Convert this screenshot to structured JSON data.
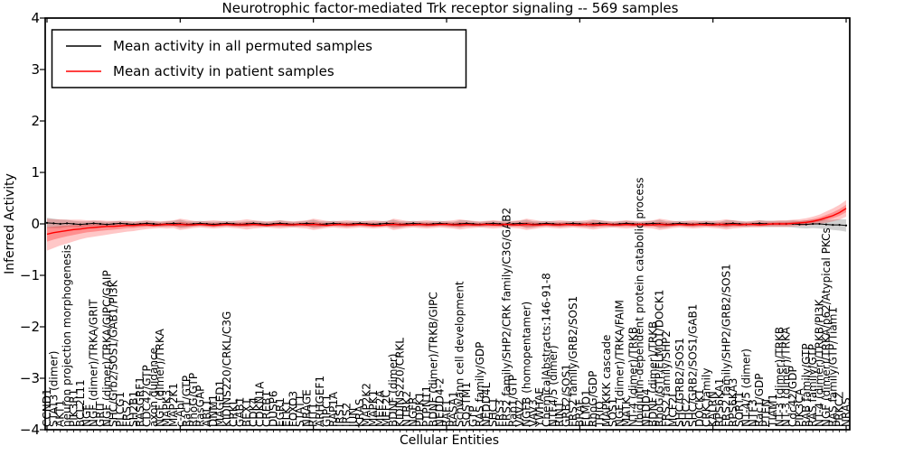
{
  "figure": {
    "kind": "matplotlib-line-figure"
  },
  "chart_data": {
    "type": "line",
    "title": "Neurotrophic factor-mediated Trk receptor signaling -- 569 samples",
    "xlabel": "Cellular Entities",
    "ylabel": "Inferred Activity",
    "ylim": [
      -4,
      4
    ],
    "ytick_labels": [
      "4",
      "3",
      "2",
      "1",
      "0",
      "−1",
      "−2",
      "−3",
      "−4"
    ],
    "ytick_values": [
      4,
      3,
      2,
      1,
      0,
      -1,
      -2,
      -3,
      -4
    ],
    "xtick_major_every": 20,
    "grid": false,
    "legend_position": "upper left",
    "colors": {
      "permuted": "#000000",
      "patient": "#ff0000",
      "patient_band": "#ff0000",
      "permuted_band": "#000000"
    },
    "categories": [
      "CCND1",
      "STAT3 (dimer)",
      "AKT1",
      "neuron projection morphogenesis",
      "PIK3R1",
      "BCL2L11",
      "NGF",
      "NGF (dimer)/TRKA/GRIT",
      "GRIT",
      "NGF (dimer)/TRKA/GIPC/GAIP",
      "SHC/Grb2/SOS1/GAB1/PI3K",
      "PLCG1",
      "FRS2",
      "SH2B1",
      "RASGRF1",
      "CDC42/GTP",
      "axon guidance",
      "NGF (dimer)/TRKA",
      "MAPK3",
      "MAP2K1",
      "c-Abl",
      "Rac1/GTP",
      "RhoG/GTP",
      "RasGAP",
      "ABL1",
      "DNM1",
      "MAGED1",
      "KIDINS220/CRKL/C3G",
      "CRKL",
      "GAB1",
      "BEX1",
      "CDK4",
      "CDKN1A",
      "CREB1",
      "DUSP6",
      "EGR1",
      "ELK1",
      "FOXO3",
      "STAT1",
      "NRAGE",
      "RIT1",
      "ARHGEF1",
      "GIPC1",
      "RAP1A",
      "IRS1",
      "IRS2",
      "JUN",
      "KRAS",
      "MAP2K2",
      "MAPK1",
      "MEF2A",
      "MEF2C",
      "BDNF (dimer)",
      "KIDINS220/CRKL",
      "NTRK2",
      "NGFR",
      "PDPK1",
      "PTPN11",
      "BDNF (dimer)/TRKB/GIPC",
      "NEDD4-2",
      "RAF1",
      "RASA1",
      "Schwann cell development",
      "SQSTM1",
      "GTP",
      "RAS family/GDP",
      "NEDD4L",
      "SHC1",
      "FRS3",
      "FRS2 family/SHP2/CRK family/C3G/GAB2",
      "Rap1/GTP",
      "VAV2",
      "NGFB (homopentamer)",
      "VAV3",
      "YWHAE",
      "ChemicalAbstracts:146-91-8",
      "NTF4/5 (dimer)",
      "RIN1",
      "GRB2/SOS1",
      "FRS2 family/GRB2/SOS1",
      "BRAF",
      "ELMO1",
      "RhoG/GDP",
      "TRIO",
      "MAPKKK cascade",
      "SOS1",
      "NGF (dimer)/TRKA/FAIM",
      "MATK",
      "NT-4 (dimer)/TRKB",
      "ubiquitin-dependent protein catabolic process",
      "NEDD4",
      "BDNF (dimer)/TRKB",
      "RhoG/GTP/ELMO1/DOCK1",
      "FRS2 family/SHP2",
      "MCF2L",
      "SHC/GRB2/SOS1",
      "SHC2",
      "SHC/GRB2/SOS1/GAB1",
      "DOCK1",
      "CRK family",
      "KALRN",
      "RPS6KA1",
      "FRS2 family/SHP2/GRB2/SOS1",
      "RPS6KA3",
      "SORT1",
      "NT-4/5 (dimer)",
      "NTF3",
      "Rac1/GDP",
      "PTEN",
      "TIAM1",
      "NT-3 (dimer)/TRKB",
      "NT-3 (dimer)/TRKA",
      "Cdc42/GDP",
      "PIK3CA",
      "RAB family/GTP",
      "RAS family/GTP",
      "NT-4 (dimer)/TRKB/PI3K",
      "NGF (dimer)/TRKA/p62/Atypical PKCs",
      "RAS family/GTP/Tiam1",
      "PRKCZ",
      "NRAS"
    ],
    "series": [
      {
        "name": "Mean activity in all permuted samples",
        "color": "#000000",
        "values": [
          0.02,
          0.01,
          0.0,
          0.01,
          0.0,
          -0.01,
          0.0,
          0.01,
          0.0,
          -0.01,
          0.0,
          0.01,
          0.0,
          -0.01,
          0.0,
          0.01,
          0.0,
          -0.01,
          0.0,
          0.01,
          0.0,
          -0.01,
          0.0,
          0.01,
          0.0,
          -0.01,
          0.0,
          0.01,
          0.0,
          -0.01,
          0.0,
          0.01,
          0.0,
          -0.01,
          0.0,
          0.01,
          0.0,
          -0.01,
          0.0,
          0.01,
          0.0,
          -0.01,
          0.0,
          0.01,
          0.0,
          -0.01,
          0.0,
          0.01,
          0.0,
          -0.01,
          0.0,
          0.01,
          0.0,
          -0.01,
          0.0,
          0.01,
          0.0,
          -0.01,
          0.0,
          0.01,
          0.0,
          -0.01,
          0.0,
          0.01,
          0.0,
          -0.01,
          0.0,
          0.01,
          0.0,
          -0.01,
          0.0,
          0.01,
          0.0,
          -0.01,
          0.0,
          0.01,
          0.0,
          -0.01,
          0.0,
          0.01,
          0.0,
          -0.01,
          0.0,
          0.01,
          0.0,
          -0.01,
          0.0,
          0.01,
          0.0,
          -0.01,
          0.0,
          0.01,
          0.0,
          -0.01,
          0.0,
          0.01,
          0.0,
          -0.01,
          0.0,
          0.01,
          0.0,
          -0.01,
          0.0,
          0.01,
          0.0,
          -0.01,
          0.0,
          0.01,
          0.0,
          0.0,
          0.0,
          0.0,
          0.0,
          -0.01,
          -0.01,
          0.0,
          0.0,
          -0.01,
          -0.02,
          -0.02,
          -0.03
        ],
        "band_halfwidth": [
          0.1,
          0.09,
          0.08,
          0.07,
          0.06,
          0.06,
          0.05,
          0.05,
          0.05,
          0.05,
          0.05,
          0.05,
          0.05,
          0.05,
          0.05,
          0.05,
          0.05,
          0.05,
          0.05,
          0.05,
          0.08,
          0.06,
          0.05,
          0.05,
          0.05,
          0.05,
          0.05,
          0.05,
          0.05,
          0.05,
          0.05,
          0.05,
          0.05,
          0.05,
          0.05,
          0.06,
          0.05,
          0.05,
          0.05,
          0.05,
          0.08,
          0.06,
          0.05,
          0.05,
          0.05,
          0.05,
          0.05,
          0.05,
          0.05,
          0.05,
          0.05,
          0.05,
          0.08,
          0.06,
          0.05,
          0.05,
          0.05,
          0.05,
          0.05,
          0.05,
          0.05,
          0.05,
          0.07,
          0.06,
          0.05,
          0.05,
          0.05,
          0.05,
          0.05,
          0.05,
          0.05,
          0.05,
          0.08,
          0.06,
          0.05,
          0.05,
          0.05,
          0.05,
          0.05,
          0.05,
          0.05,
          0.05,
          0.07,
          0.06,
          0.05,
          0.05,
          0.05,
          0.05,
          0.05,
          0.05,
          0.05,
          0.05,
          0.08,
          0.06,
          0.05,
          0.05,
          0.05,
          0.05,
          0.05,
          0.05,
          0.05,
          0.05,
          0.07,
          0.06,
          0.05,
          0.05,
          0.05,
          0.06,
          0.06,
          0.06,
          0.06,
          0.06,
          0.07,
          0.07,
          0.08,
          0.08,
          0.09,
          0.09,
          0.1,
          0.11,
          0.12
        ]
      },
      {
        "name": "Mean activity in patient samples",
        "color": "#ff0000",
        "values": [
          -0.2,
          -0.17,
          -0.15,
          -0.13,
          -0.11,
          -0.1,
          -0.08,
          -0.07,
          -0.06,
          -0.05,
          -0.05,
          -0.04,
          -0.03,
          -0.03,
          -0.02,
          -0.02,
          -0.03,
          -0.02,
          -0.01,
          -0.02,
          -0.01,
          -0.02,
          -0.02,
          -0.01,
          -0.02,
          -0.03,
          -0.02,
          -0.01,
          -0.02,
          -0.02,
          -0.02,
          -0.01,
          -0.02,
          -0.03,
          -0.02,
          -0.01,
          -0.02,
          -0.02,
          -0.01,
          -0.02,
          -0.01,
          -0.02,
          -0.03,
          -0.02,
          -0.01,
          -0.02,
          -0.02,
          -0.01,
          -0.02,
          -0.03,
          -0.03,
          -0.02,
          -0.01,
          -0.02,
          -0.02,
          -0.02,
          -0.01,
          -0.02,
          -0.02,
          -0.01,
          -0.01,
          -0.02,
          -0.02,
          -0.01,
          -0.02,
          -0.02,
          -0.01,
          -0.02,
          -0.02,
          -0.01,
          -0.02,
          -0.02,
          -0.01,
          -0.02,
          -0.02,
          -0.01,
          -0.02,
          -0.02,
          -0.01,
          -0.02,
          -0.02,
          -0.01,
          -0.02,
          -0.02,
          -0.01,
          -0.02,
          -0.02,
          -0.01,
          -0.02,
          -0.01,
          -0.02,
          -0.02,
          -0.01,
          -0.02,
          -0.02,
          -0.01,
          -0.02,
          -0.02,
          -0.01,
          -0.02,
          -0.02,
          -0.01,
          -0.02,
          -0.01,
          -0.02,
          -0.01,
          -0.01,
          -0.02,
          -0.01,
          0.0,
          0.0,
          0.0,
          0.01,
          0.02,
          0.03,
          0.05,
          0.08,
          0.12,
          0.16,
          0.22,
          0.3
        ],
        "band_lo": [
          -0.52,
          -0.47,
          -0.42,
          -0.38,
          -0.34,
          -0.3,
          -0.27,
          -0.25,
          -0.23,
          -0.21,
          -0.19,
          -0.17,
          -0.15,
          -0.14,
          -0.12,
          -0.1,
          -0.09,
          -0.08,
          -0.09,
          -0.08,
          -0.12,
          -0.1,
          -0.08,
          -0.07,
          -0.08,
          -0.09,
          -0.08,
          -0.07,
          -0.08,
          -0.09,
          -0.11,
          -0.09,
          -0.08,
          -0.07,
          -0.08,
          -0.09,
          -0.08,
          -0.07,
          -0.08,
          -0.09,
          -0.12,
          -0.1,
          -0.08,
          -0.07,
          -0.08,
          -0.09,
          -0.08,
          -0.07,
          -0.08,
          -0.09,
          -0.08,
          -0.07,
          -0.12,
          -0.1,
          -0.08,
          -0.07,
          -0.08,
          -0.09,
          -0.08,
          -0.07,
          -0.08,
          -0.09,
          -0.11,
          -0.09,
          -0.08,
          -0.07,
          -0.08,
          -0.09,
          -0.08,
          -0.07,
          -0.08,
          -0.09,
          -0.12,
          -0.1,
          -0.08,
          -0.07,
          -0.08,
          -0.09,
          -0.08,
          -0.07,
          -0.08,
          -0.09,
          -0.11,
          -0.09,
          -0.08,
          -0.07,
          -0.08,
          -0.09,
          -0.08,
          -0.07,
          -0.08,
          -0.09,
          -0.12,
          -0.1,
          -0.08,
          -0.07,
          -0.08,
          -0.09,
          -0.08,
          -0.07,
          -0.08,
          -0.09,
          -0.11,
          -0.09,
          -0.08,
          -0.07,
          -0.07,
          -0.07,
          -0.06,
          -0.06,
          -0.06,
          -0.06,
          -0.05,
          -0.04,
          -0.03,
          -0.02,
          0.0,
          0.02,
          0.05,
          0.08,
          0.14
        ],
        "band_hi": [
          0.1,
          0.09,
          0.09,
          0.08,
          0.08,
          0.08,
          0.07,
          0.07,
          0.07,
          0.06,
          0.06,
          0.06,
          0.06,
          0.05,
          0.06,
          0.07,
          0.06,
          0.05,
          0.06,
          0.07,
          0.1,
          0.08,
          0.06,
          0.05,
          0.06,
          0.07,
          0.06,
          0.05,
          0.06,
          0.07,
          0.09,
          0.07,
          0.06,
          0.05,
          0.06,
          0.07,
          0.06,
          0.05,
          0.06,
          0.07,
          0.1,
          0.08,
          0.06,
          0.05,
          0.06,
          0.07,
          0.06,
          0.05,
          0.06,
          0.07,
          0.06,
          0.05,
          0.1,
          0.08,
          0.06,
          0.05,
          0.06,
          0.07,
          0.06,
          0.05,
          0.06,
          0.07,
          0.09,
          0.07,
          0.06,
          0.05,
          0.06,
          0.07,
          0.06,
          0.05,
          0.06,
          0.07,
          0.1,
          0.08,
          0.06,
          0.05,
          0.06,
          0.07,
          0.06,
          0.05,
          0.06,
          0.07,
          0.09,
          0.07,
          0.06,
          0.05,
          0.06,
          0.07,
          0.06,
          0.05,
          0.06,
          0.07,
          0.1,
          0.08,
          0.06,
          0.05,
          0.06,
          0.07,
          0.06,
          0.06,
          0.06,
          0.07,
          0.09,
          0.07,
          0.06,
          0.05,
          0.06,
          0.07,
          0.06,
          0.06,
          0.07,
          0.07,
          0.08,
          0.09,
          0.11,
          0.14,
          0.18,
          0.24,
          0.3,
          0.37,
          0.46
        ]
      }
    ]
  }
}
